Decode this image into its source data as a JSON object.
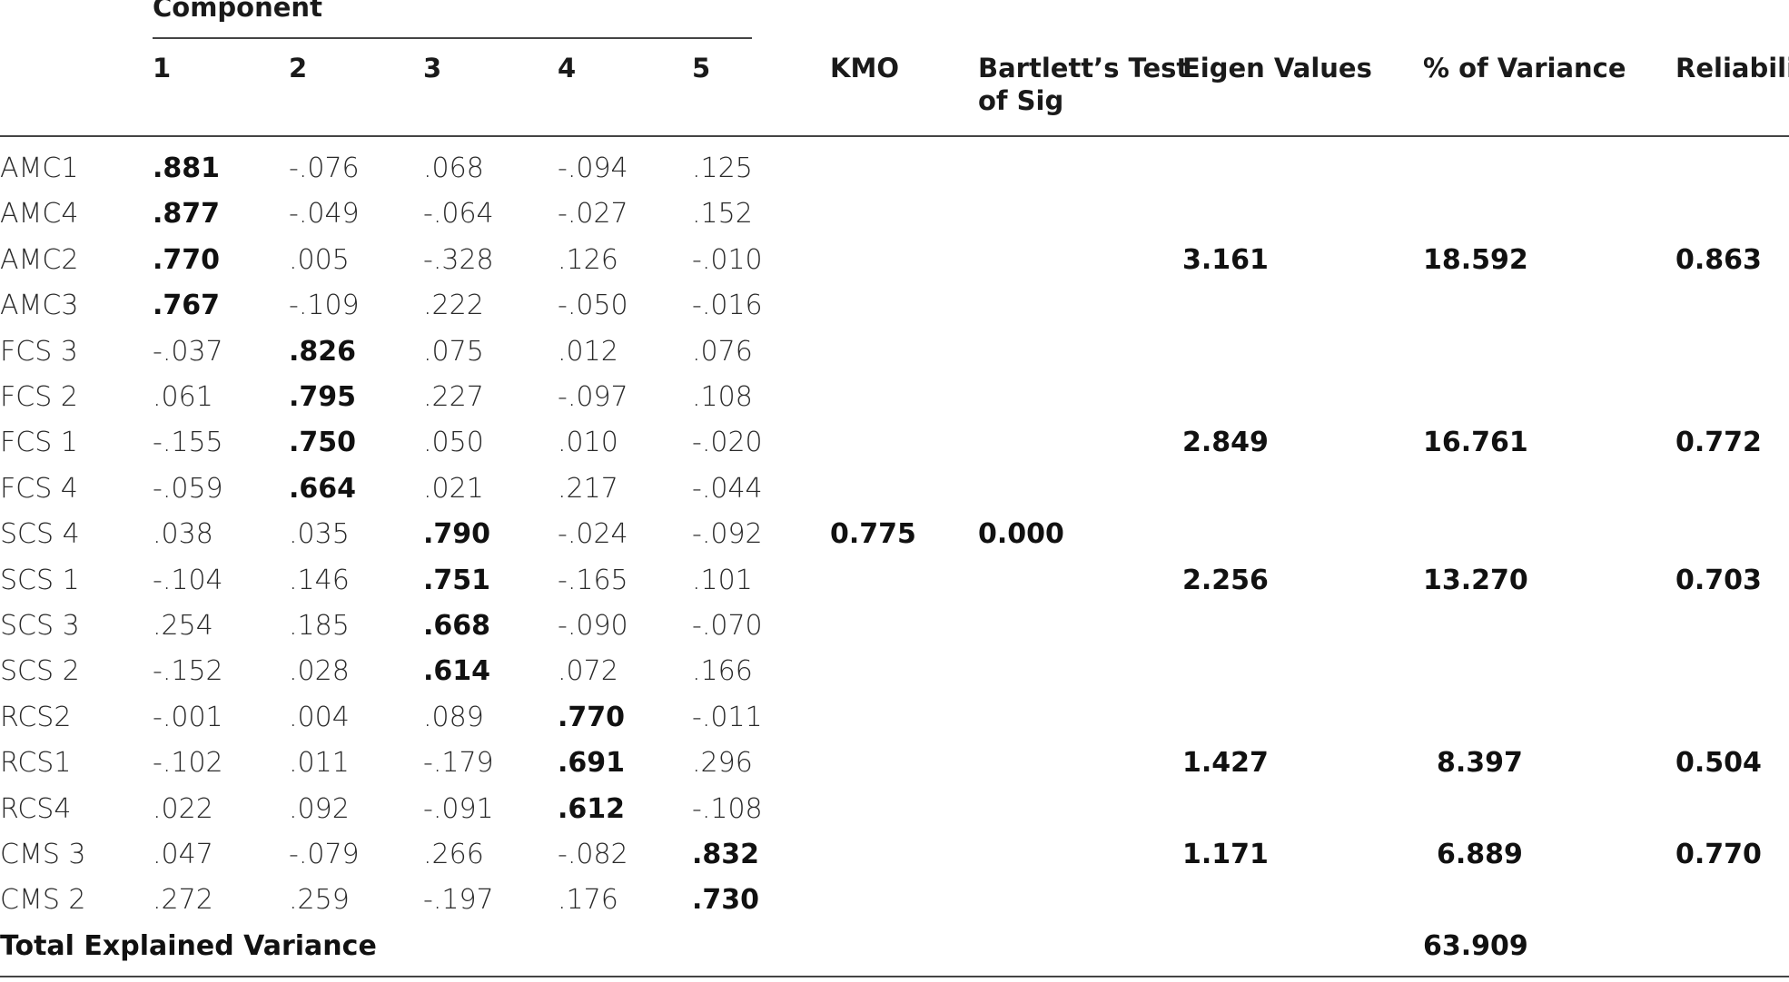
{
  "table": {
    "component_header": "Component",
    "component_numbers": [
      "1",
      "2",
      "3",
      "4",
      "5"
    ],
    "kmo_header": "KMO",
    "bartlett_header_line1": "Bartlett’s Test",
    "bartlett_header_line2": "of Sig",
    "eigen_header": "Eigen Values",
    "variance_header": "% of Variance",
    "reliability_header": "Reliabilit",
    "rows": [
      {
        "label": "AMC1",
        "values": [
          ".881",
          "-.076",
          ".068",
          "-.094",
          ".125"
        ],
        "bold": 0
      },
      {
        "label": "AMC4",
        "values": [
          ".877",
          "-.049",
          "-.064",
          "-.027",
          ".152"
        ],
        "bold": 0
      },
      {
        "label": "AMC2",
        "values": [
          ".770",
          ".005",
          "-.328",
          ".126",
          "-.010"
        ],
        "bold": 0
      },
      {
        "label": "AMC3",
        "values": [
          ".767",
          "-.109",
          ".222",
          "-.050",
          "-.016"
        ],
        "bold": 0
      },
      {
        "label": "FCS 3",
        "values": [
          "-.037",
          ".826",
          ".075",
          ".012",
          ".076"
        ],
        "bold": 1
      },
      {
        "label": "FCS 2",
        "values": [
          ".061",
          ".795",
          ".227",
          "-.097",
          ".108"
        ],
        "bold": 1
      },
      {
        "label": "FCS 1",
        "values": [
          "-.155",
          ".750",
          ".050",
          ".010",
          "-.020"
        ],
        "bold": 1
      },
      {
        "label": "FCS 4",
        "values": [
          "-.059",
          ".664",
          ".021",
          ".217",
          "-.044"
        ],
        "bold": 1
      },
      {
        "label": "SCS 4",
        "values": [
          ".038",
          ".035",
          ".790",
          "-.024",
          "-.092"
        ],
        "bold": 2
      },
      {
        "label": "SCS 1",
        "values": [
          "-.104",
          ".146",
          ".751",
          "-.165",
          ".101"
        ],
        "bold": 2
      },
      {
        "label": "SCS 3",
        "values": [
          ".254",
          ".185",
          ".668",
          "-.090",
          "-.070"
        ],
        "bold": 2
      },
      {
        "label": "SCS 2",
        "values": [
          "-.152",
          ".028",
          ".614",
          ".072",
          ".166"
        ],
        "bold": 2
      },
      {
        "label": "RCS2",
        "values": [
          "-.001",
          ".004",
          ".089",
          ".770",
          "-.011"
        ],
        "bold": 3
      },
      {
        "label": "RCS1",
        "values": [
          "-.102",
          ".011",
          "-.179",
          ".691",
          ".296"
        ],
        "bold": 3
      },
      {
        "label": "RCS4",
        "values": [
          ".022",
          ".092",
          "-.091",
          ".612",
          "-.108"
        ],
        "bold": 3
      },
      {
        "label": "CMS 3",
        "values": [
          ".047",
          "-.079",
          ".266",
          "-.082",
          ".832"
        ],
        "bold": 4
      },
      {
        "label": "CMS 2",
        "values": [
          ".272",
          ".259",
          "-.197",
          ".176",
          ".730"
        ],
        "bold": 4
      }
    ],
    "kmo_value": "0.775",
    "bartlett_value": "0.000",
    "groups": [
      {
        "eigen": "3.161",
        "variance": "18.592",
        "reliability": "0.863"
      },
      {
        "eigen": "2.849",
        "variance": "16.761",
        "reliability": "0.772"
      },
      {
        "eigen": "2.256",
        "variance": "13.270",
        "reliability": "0.703"
      },
      {
        "eigen": "1.427",
        "variance": "8.397",
        "reliability": "0.504"
      },
      {
        "eigen": "1.171",
        "variance": "6.889",
        "reliability": "0.770"
      }
    ],
    "total_label": "Total Explained Variance",
    "total_variance": "63.909"
  }
}
